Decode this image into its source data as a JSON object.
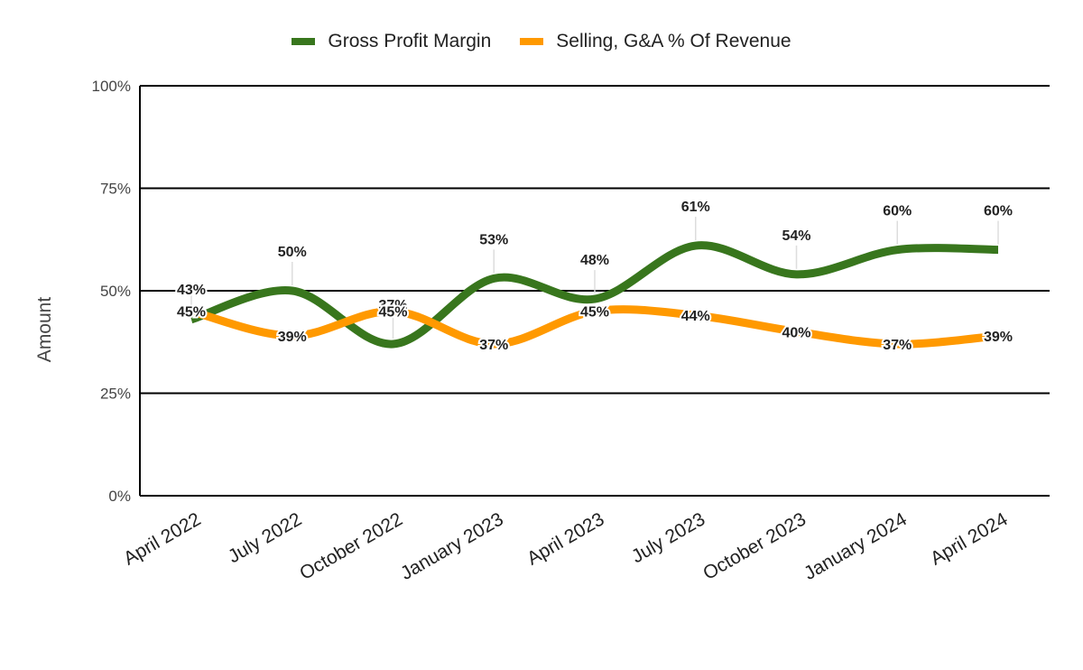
{
  "chart_data": {
    "type": "line",
    "title": "",
    "xlabel": "",
    "ylabel": "Amount",
    "ylim": [
      0,
      100
    ],
    "yticks": [
      "0%",
      "25%",
      "50%",
      "75%",
      "100%"
    ],
    "ytick_values": [
      0,
      25,
      50,
      75,
      100
    ],
    "grid": true,
    "legend_position": "top",
    "smooth": true,
    "categories": [
      "April 2022",
      "July 2022",
      "October 2022",
      "January 2023",
      "April 2023",
      "July 2023",
      "October 2023",
      "January 2024",
      "April 2024"
    ],
    "series": [
      {
        "name": "Gross Profit Margin",
        "color": "#38761d",
        "values": [
          43,
          50,
          37,
          53,
          48,
          61,
          54,
          60,
          60
        ],
        "labels": [
          "43%",
          "50%",
          "37%",
          "53%",
          "48%",
          "61%",
          "54%",
          "60%",
          "60%"
        ]
      },
      {
        "name": "Selling, G&A % Of Revenue",
        "color": "#ff9900",
        "values": [
          45,
          39,
          45,
          37,
          45,
          44,
          40,
          37,
          39
        ],
        "labels": [
          "45%",
          "39%",
          "45%",
          "37%",
          "45%",
          "44%",
          "40%",
          "37%",
          "39%"
        ]
      }
    ]
  }
}
